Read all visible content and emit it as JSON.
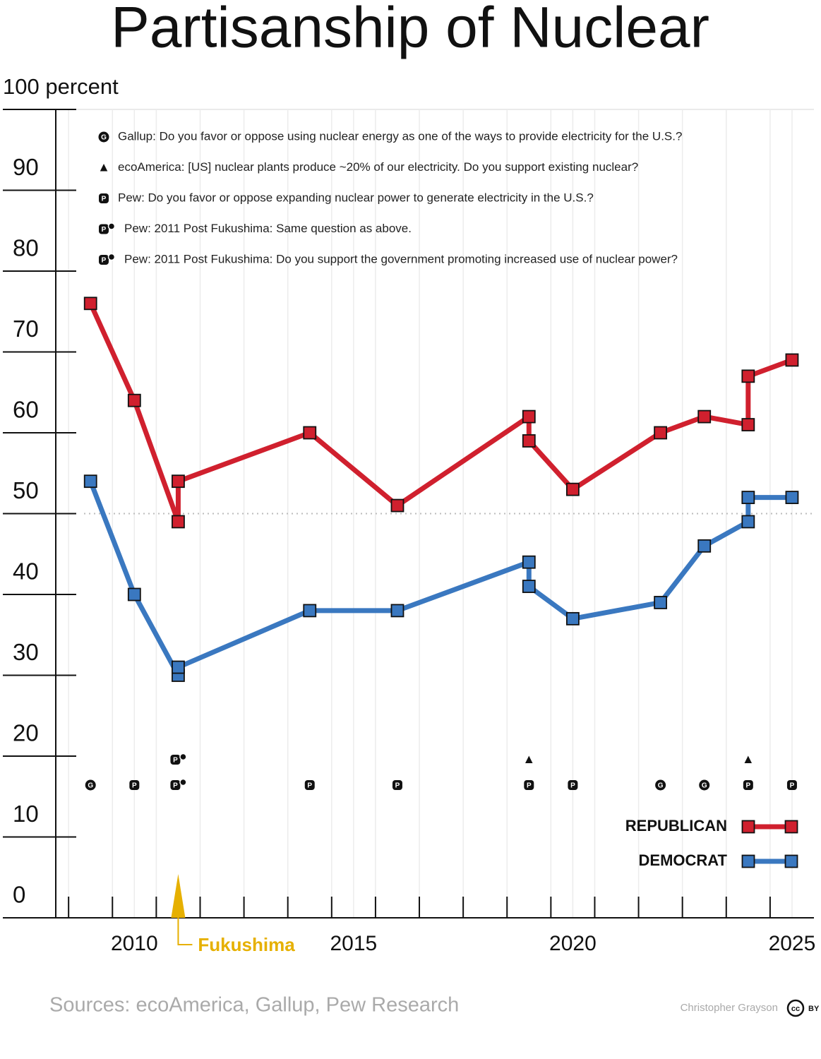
{
  "chart_data": {
    "type": "line",
    "title": "Partisanship of Nuclear",
    "x": [
      2009,
      2010,
      2011,
      2011,
      2014,
      2016,
      2019,
      2019,
      2020,
      2022,
      2023,
      2024,
      2024,
      2025
    ],
    "series": [
      {
        "name": "REPUBLICAN",
        "color": "#d0202e",
        "values": [
          76,
          64,
          49,
          54,
          60,
          51,
          62,
          59,
          53,
          60,
          62,
          61,
          67,
          69
        ]
      },
      {
        "name": "DEMOCRAT",
        "color": "#3a78c0",
        "values": [
          54,
          40,
          30,
          31,
          38,
          38,
          44,
          41,
          37,
          39,
          46,
          49,
          52,
          52
        ]
      }
    ],
    "xlim": [
      2007,
      2025.5
    ],
    "xticks": [
      2010,
      2015,
      2020,
      2025
    ],
    "minor_xticks": [
      2008.5,
      2009.5,
      2010.5,
      2011.5,
      2012.5,
      2013.5,
      2014.5,
      2015.5,
      2016.5,
      2017.5,
      2018.5,
      2019.5,
      2020.5,
      2021.5,
      2022.5,
      2023.5,
      2024.5
    ],
    "ylim": [
      0,
      100
    ],
    "yticks": [
      0,
      10,
      20,
      30,
      40,
      50,
      60,
      70,
      80,
      90,
      {
        "value": 100,
        "label": "100 percent"
      }
    ],
    "reference_line": 50,
    "grid": true,
    "legend": "lower right",
    "survey_legend": [
      {
        "symbol": "G",
        "badge": false,
        "text": "Gallup: Do you favor or oppose using nuclear energy as one of the ways to provide electricity for the U.S.?"
      },
      {
        "symbol": "▲",
        "badge": false,
        "text": "ecoAmerica: [US] nuclear plants produce ~20% of our electricity. Do you support existing nuclear?"
      },
      {
        "symbol": "P",
        "badge": false,
        "text": "Pew: Do you favor or oppose expanding nuclear power to generate electricity in the U.S.?"
      },
      {
        "symbol": "P",
        "badge": true,
        "text": "Pew: 2011 Post Fukushima: Same question as above."
      },
      {
        "symbol": "P",
        "badge": true,
        "text": "Pew: 2011 Post Fukushima: Do you support the government promoting increased use of nuclear power?"
      }
    ],
    "surveys": [
      {
        "x": 2009,
        "symbols": [
          {
            "symbol": "G",
            "badge": false
          }
        ]
      },
      {
        "x": 2010,
        "symbols": [
          {
            "symbol": "P",
            "badge": false
          }
        ]
      },
      {
        "x": 2011,
        "symbols": [
          {
            "symbol": "P",
            "badge": true
          },
          {
            "symbol": "P",
            "badge": true
          }
        ]
      },
      {
        "x": 2014,
        "symbols": [
          {
            "symbol": "P",
            "badge": false
          }
        ]
      },
      {
        "x": 2016,
        "symbols": [
          {
            "symbol": "P",
            "badge": false
          }
        ]
      },
      {
        "x": 2019,
        "symbols": [
          {
            "symbol": "P",
            "badge": false
          },
          {
            "symbol": "▲",
            "badge": false
          }
        ]
      },
      {
        "x": 2020,
        "symbols": [
          {
            "symbol": "P",
            "badge": false
          }
        ]
      },
      {
        "x": 2022,
        "symbols": [
          {
            "symbol": "G",
            "badge": false
          }
        ]
      },
      {
        "x": 2023,
        "symbols": [
          {
            "symbol": "G",
            "badge": false
          }
        ]
      },
      {
        "x": 2024,
        "symbols": [
          {
            "symbol": "P",
            "badge": false
          },
          {
            "symbol": "▲",
            "badge": false
          }
        ]
      },
      {
        "x": 2025,
        "symbols": [
          {
            "symbol": "P",
            "badge": false
          }
        ]
      }
    ],
    "event": {
      "x": 2011,
      "text": "Fukushima",
      "color": "#e6b000"
    },
    "source": "Sources: ecoAmerica, Gallup, Pew Research",
    "author": "Christopher Grayson",
    "license": [
      "cc",
      "BY"
    ]
  }
}
